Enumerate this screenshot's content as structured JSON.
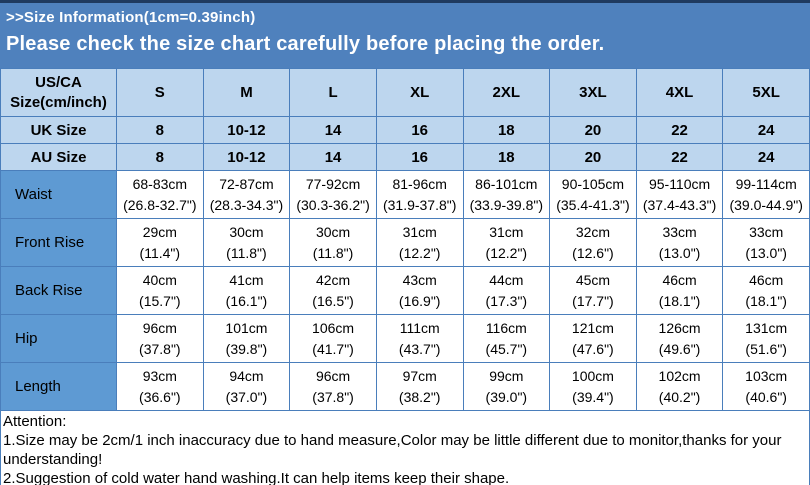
{
  "banner": {
    "title": ">>Size Information(1cm=0.39inch)",
    "subtitle": "Please check the size chart carefully before placing the order."
  },
  "table": {
    "header": {
      "label": "US/CA\nSize(cm/inch)",
      "sizes": [
        "S",
        "M",
        "L",
        "XL",
        "2XL",
        "3XL",
        "4XL",
        "5XL"
      ]
    },
    "rows": [
      {
        "label": "UK Size",
        "values": [
          "8",
          "10-12",
          "14",
          "16",
          "18",
          "20",
          "22",
          "24"
        ]
      },
      {
        "label": "AU Size",
        "values": [
          "8",
          "10-12",
          "14",
          "16",
          "18",
          "20",
          "22",
          "24"
        ]
      },
      {
        "label": "Waist",
        "values": [
          "68-83cm\n(26.8-32.7\")",
          "72-87cm\n(28.3-34.3\")",
          "77-92cm\n(30.3-36.2\")",
          "81-96cm\n(31.9-37.8\")",
          "86-101cm\n(33.9-39.8\")",
          "90-105cm\n(35.4-41.3\")",
          "95-110cm\n(37.4-43.3\")",
          "99-114cm\n(39.0-44.9\")"
        ]
      },
      {
        "label": "Front Rise",
        "values": [
          "29cm\n(11.4\")",
          "30cm\n(11.8\")",
          "30cm\n(11.8\")",
          "31cm\n(12.2\")",
          "31cm\n(12.2\")",
          "32cm\n(12.6\")",
          "33cm\n(13.0\")",
          "33cm\n(13.0\")"
        ]
      },
      {
        "label": "Back Rise",
        "values": [
          "40cm\n(15.7\")",
          "41cm\n(16.1\")",
          "42cm\n(16.5\")",
          "43cm\n(16.9\")",
          "44cm\n(17.3\")",
          "45cm\n(17.7\")",
          "46cm\n(18.1\")",
          "46cm\n(18.1\")"
        ]
      },
      {
        "label": "Hip",
        "values": [
          "96cm\n(37.8\")",
          "101cm\n(39.8\")",
          "106cm\n(41.7\")",
          "111cm\n(43.7\")",
          "116cm\n(45.7\")",
          "121cm\n(47.6\")",
          "126cm\n(49.6\")",
          "131cm\n(51.6\")"
        ]
      },
      {
        "label": "Length",
        "values": [
          "93cm\n(36.6\")",
          "94cm\n(37.0\")",
          "96cm\n(37.8\")",
          "97cm\n(38.2\")",
          "99cm\n(39.0\")",
          "100cm\n(39.4\")",
          "102cm\n(40.2\")",
          "103cm\n(40.6\")"
        ]
      }
    ]
  },
  "attention": {
    "heading": "Attention:",
    "notes": [
      "1.Size may be 2cm/1 inch inaccuracy due to hand measure,Color may be little different due to monitor,thanks for your understanding!",
      "2.Suggestion of cold water hand washing.It can help items keep their shape."
    ]
  },
  "colors": {
    "banner_blue": "#4f81bd",
    "dark_line": "#1f3a5f",
    "header_cell_blue": "#bdd6ee",
    "label_cell_blue": "#5e9ad3",
    "border_blue": "#4a7ebb",
    "text_on_banner": "#ffffff"
  }
}
